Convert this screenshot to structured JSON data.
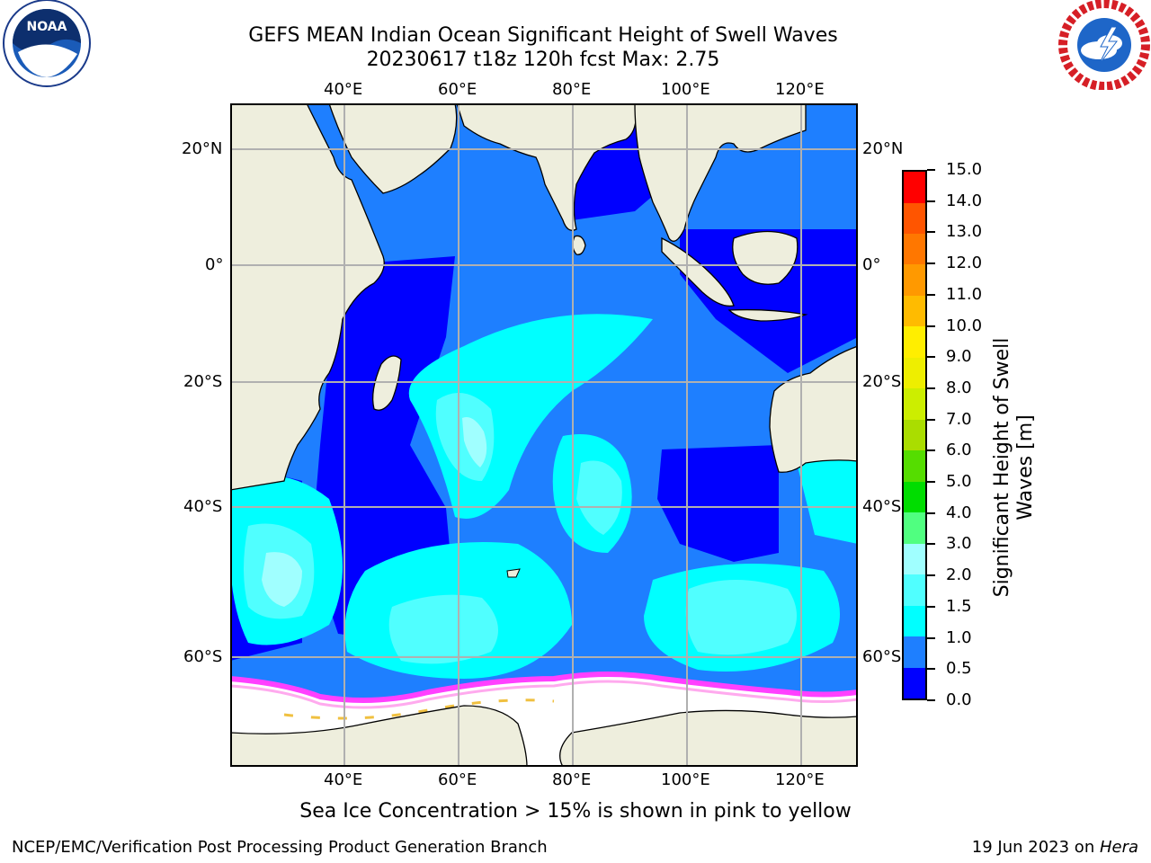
{
  "title_line1": "GEFS MEAN Indian Ocean Significant Height of Swell Waves",
  "title_line2": "20230617 t18z 120h fcst   Max: 2.75",
  "logos": {
    "left": {
      "name": "noaa-logo",
      "text": "NOAA",
      "ring_text": "NATIONAL OCEANIC AND ATMOSPHERIC ADMINISTRATION · U.S. DEPARTMENT OF COMMERCE"
    },
    "right": {
      "name": "nws-logo",
      "ring_text": "NATIONAL WEATHER SERVICE"
    }
  },
  "map": {
    "lon_labels": [
      "40°E",
      "60°E",
      "80°E",
      "100°E",
      "120°E"
    ],
    "lat_labels": [
      "20°N",
      "0°",
      "20°S",
      "40°S",
      "60°S"
    ],
    "lon_range": [
      20,
      130
    ],
    "lat_range": [
      -75,
      28
    ],
    "colors": {
      "land": "#eeeedd",
      "ice_free_bg": "#ffffff",
      "coast": "#000000",
      "grid": "#b0b0b0"
    }
  },
  "colorbar": {
    "label_line1": "Significant Height of Swell",
    "label_line2": "Waves [m]",
    "ticks": [
      "0.0",
      "0.5",
      "1.0",
      "1.5",
      "2.0",
      "3.0",
      "4.0",
      "5.0",
      "6.0",
      "7.0",
      "8.0",
      "9.0",
      "10.0",
      "11.0",
      "12.0",
      "13.0",
      "14.0",
      "15.0"
    ],
    "colors": [
      "#0000ff",
      "#1e7fff",
      "#00ffff",
      "#50ffff",
      "#a0ffff",
      "#50ff80",
      "#00dd00",
      "#55dd00",
      "#aadd00",
      "#ccee00",
      "#eeee00",
      "#ffee00",
      "#ffbb00",
      "#ff9900",
      "#ff7700",
      "#ff5500",
      "#ff3300",
      "#ff0000"
    ]
  },
  "caption": "Sea Ice Concentration > 15% is shown in pink to yellow",
  "footer_left": "NCEP/EMC/Verification Post Processing Product Generation Branch",
  "footer_right_prefix": "19 Jun 2023 on ",
  "footer_right_host": "Hera"
}
